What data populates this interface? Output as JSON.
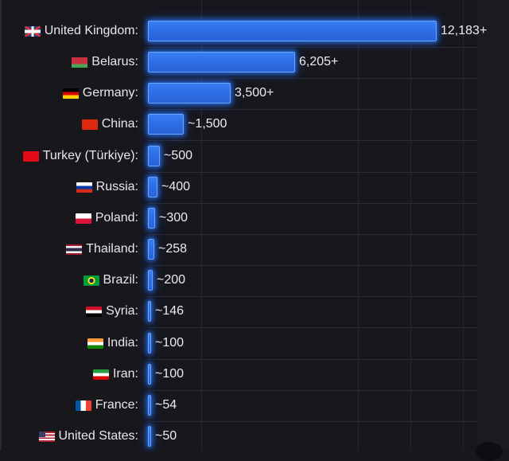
{
  "colors": {
    "background": "#17171c",
    "bar_fill": "#2f6fe6",
    "bar_glow": "#3a86ff",
    "text": "#e8e8ec",
    "grid": "#2c2c34"
  },
  "chart_data": {
    "type": "bar",
    "orientation": "horizontal",
    "title": "",
    "xlabel": "",
    "ylabel": "",
    "grid": true,
    "legend": null,
    "categories": [
      "United Kingdom",
      "Belarus",
      "Germany",
      "China",
      "Turkey (Türkiye)",
      "Russia",
      "Poland",
      "Thailand",
      "Brazil",
      "Syria",
      "India",
      "Iran",
      "France",
      "United States"
    ],
    "values": [
      12183,
      6205,
      3500,
      1500,
      500,
      400,
      300,
      258,
      200,
      146,
      100,
      100,
      54,
      50
    ],
    "value_labels": [
      "12,183+",
      "6,205+",
      "3,500+",
      "~1,500",
      "~500",
      "~400",
      "~300",
      "~258",
      "~200",
      "~146",
      "~100",
      "~100",
      "~54",
      "~50"
    ],
    "xlim": [
      0,
      12183
    ]
  },
  "rows": [
    {
      "label": "United Kingdom:",
      "flag": "uk-flag-icon",
      "value_label": "12,183+",
      "value": 12183
    },
    {
      "label": "Belarus:",
      "flag": "belarus-flag-icon",
      "value_label": "6,205+",
      "value": 6205
    },
    {
      "label": "Germany:",
      "flag": "germany-flag-icon",
      "value_label": "3,500+",
      "value": 3500
    },
    {
      "label": "China:",
      "flag": "china-flag-icon",
      "value_label": "~1,500",
      "value": 1500
    },
    {
      "label": "Turkey (Türkiye):",
      "flag": "turkey-flag-icon",
      "value_label": "~500",
      "value": 500
    },
    {
      "label": "Russia:",
      "flag": "russia-flag-icon",
      "value_label": "~400",
      "value": 400
    },
    {
      "label": "Poland:",
      "flag": "poland-flag-icon",
      "value_label": "~300",
      "value": 300
    },
    {
      "label": "Thailand:",
      "flag": "thailand-flag-icon",
      "value_label": "~258",
      "value": 258
    },
    {
      "label": "Brazil:",
      "flag": "brazil-flag-icon",
      "value_label": "~200",
      "value": 200
    },
    {
      "label": "Syria:",
      "flag": "syria-flag-icon",
      "value_label": "~146",
      "value": 146
    },
    {
      "label": "India:",
      "flag": "india-flag-icon",
      "value_label": "~100",
      "value": 100
    },
    {
      "label": "Iran:",
      "flag": "iran-flag-icon",
      "value_label": "~100",
      "value": 100
    },
    {
      "label": "France:",
      "flag": "france-flag-icon",
      "value_label": "~54",
      "value": 54
    },
    {
      "label": "United States:",
      "flag": "usa-flag-icon",
      "value_label": "~50",
      "value": 50
    }
  ]
}
